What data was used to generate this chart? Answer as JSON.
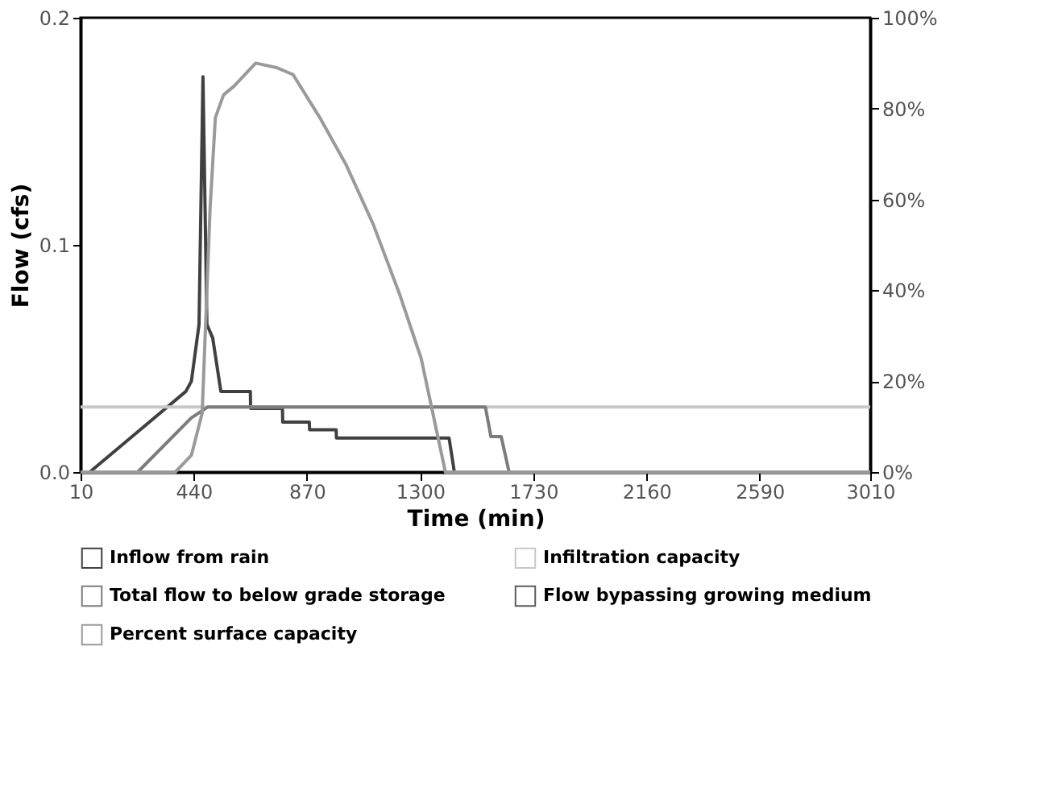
{
  "chart_data": {
    "type": "line",
    "xlabel": "Time (min)",
    "ylabel": "Flow (cfs)",
    "xlim": [
      10,
      3010
    ],
    "xticks": [
      10,
      440,
      870,
      1300,
      1730,
      2160,
      2590,
      3010
    ],
    "ylim": [
      0,
      0.2
    ],
    "yticks": [
      {
        "value": 0,
        "label": "0.0"
      },
      {
        "value": 0.1,
        "label": "0.1"
      },
      {
        "value": 0.2,
        "label": "0.2"
      }
    ],
    "y2lim": [
      0,
      100
    ],
    "y2ticks": [
      {
        "value": 0,
        "label": "0%"
      },
      {
        "value": 20,
        "label": "20%"
      },
      {
        "value": 40,
        "label": "40%"
      },
      {
        "value": 60,
        "label": "60%"
      },
      {
        "value": 80,
        "label": "80%"
      },
      {
        "value": 100,
        "label": "100%"
      }
    ],
    "grid": false,
    "legend": "bottom",
    "marker": "none",
    "line_style": "solid",
    "series": [
      {
        "name": "Inflow from rain",
        "color": "#404040",
        "x": [
          10,
          45,
          410,
          431,
          460,
          475,
          490,
          512,
          543,
          655,
          656,
          777,
          778,
          879,
          880,
          981,
          982,
          1410,
          1430,
          3010
        ],
        "values": [
          0,
          0,
          0.0355,
          0.04,
          0.065,
          0.174,
          0.065,
          0.059,
          0.0355,
          0.0355,
          0.028,
          0.028,
          0.022,
          0.022,
          0.0186,
          0.0186,
          0.015,
          0.015,
          0,
          0
        ]
      },
      {
        "name": "Infiltration capacity",
        "color": "#c8c8c8",
        "x": [
          10,
          3010
        ],
        "values": [
          0.0286,
          0.0286
        ]
      },
      {
        "name": "Total flow to below grade storage",
        "color": "#7c7c7c",
        "x": [
          10,
          227,
          431,
          493,
          1548,
          1569,
          1608,
          1638,
          3010
        ],
        "values": [
          0,
          0,
          0.0239,
          0.0286,
          0.0286,
          0.0156,
          0.0156,
          0,
          0
        ]
      },
      {
        "name": "Flow bypassing growing medium",
        "color": "#5c5c5c"
      },
      {
        "name": "Percent surface capacity",
        "color": "#9a9a9a",
        "axis": "y2",
        "x": [
          10,
          370,
          431,
          472,
          502,
          522,
          553,
          594,
          675,
          756,
          817,
          919,
          1020,
          1122,
          1223,
          1304,
          1396,
          3010
        ],
        "values": [
          0,
          0,
          3.7,
          13,
          58,
          78,
          83,
          85,
          90,
          89,
          87.5,
          78,
          67.5,
          54.5,
          39,
          25,
          0,
          0
        ]
      }
    ]
  }
}
